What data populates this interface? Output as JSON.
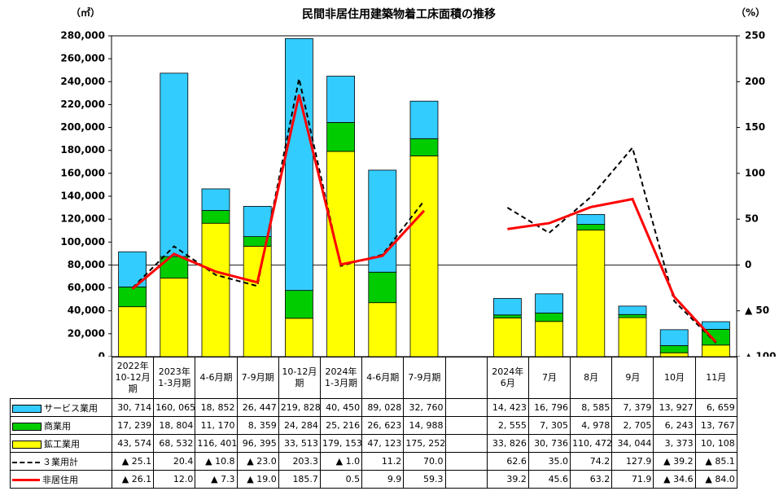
{
  "chart_data": {
    "type": "bar",
    "title": "民間非居住用建築物着工床面積の推移",
    "y_unit": "（㎡）",
    "y2_unit": "（%）",
    "categories": [
      "2022年\n10-12月\n期",
      "2023年\n1-3月期",
      "4-6月期",
      "7-9月期",
      "10-12月\n期",
      "2024年\n1-3月期",
      "4-6月期",
      "7-9月期",
      null,
      "2024年\n6月",
      "7月",
      "8月",
      "9月",
      "10月",
      "11月"
    ],
    "ylim": [
      0,
      280000
    ],
    "yticks": [
      0,
      {
        "value": 20000,
        "label": "20,000"
      },
      {
        "value": 40000,
        "label": "40,000"
      },
      {
        "value": 60000,
        "label": "60,000"
      },
      {
        "value": 80000,
        "label": "80,000"
      },
      {
        "value": 100000,
        "label": "100,000"
      },
      {
        "value": 120000,
        "label": "120,000"
      },
      {
        "value": 140000,
        "label": "140,000"
      },
      {
        "value": 160000,
        "label": "160,000"
      },
      {
        "value": 180000,
        "label": "180,000"
      },
      {
        "value": 200000,
        "label": "200,000"
      },
      {
        "value": 220000,
        "label": "220,000"
      },
      {
        "value": 240000,
        "label": "240,000"
      },
      {
        "value": 260000,
        "label": "260,000"
      },
      {
        "value": 280000,
        "label": "280,000"
      }
    ],
    "y2lim": [
      -100,
      250
    ],
    "y2ticks": [
      {
        "value": -100,
        "label": "▲ 100"
      },
      {
        "value": -50,
        "label": "▲ 50"
      },
      0,
      50,
      100,
      150,
      200,
      250
    ],
    "series": [
      {
        "name": "サービス業用",
        "type": "bar",
        "color": "#33ccff",
        "values": [
          30714,
          160065,
          18852,
          26447,
          219828,
          40450,
          89028,
          32760,
          null,
          14423,
          16796,
          8585,
          7379,
          13927,
          6659
        ],
        "value_labels": [
          "30, 714",
          "160, 065",
          "18, 852",
          "26, 447",
          "219, 828",
          "40, 450",
          "89, 028",
          "32, 760",
          null,
          "14, 423",
          "16, 796",
          "8, 585",
          "7, 379",
          "13, 927",
          "6, 659"
        ]
      },
      {
        "name": "商業用",
        "type": "bar",
        "color": "#00cc00",
        "values": [
          17239,
          18804,
          11170,
          8359,
          24284,
          25216,
          26623,
          14988,
          null,
          2555,
          7305,
          4978,
          2705,
          6243,
          13767
        ],
        "value_labels": [
          "17, 239",
          "18, 804",
          "11, 170",
          "8, 359",
          "24, 284",
          "25, 216",
          "26, 623",
          "14, 988",
          null,
          "2, 555",
          "7, 305",
          "4, 978",
          "2, 705",
          "6, 243",
          "13, 767"
        ]
      },
      {
        "name": "鉱工業用",
        "type": "bar",
        "color": "#ffff00",
        "values": [
          43574,
          68532,
          116401,
          96395,
          33513,
          179153,
          47123,
          175252,
          null,
          33826,
          30736,
          110472,
          34044,
          3373,
          10108
        ],
        "value_labels": [
          "43, 574",
          "68, 532",
          "116, 401",
          "96, 395",
          "33, 513",
          "179, 153",
          "47, 123",
          "175, 252",
          null,
          "33, 826",
          "30, 736",
          "110, 472",
          "34, 044",
          "3, 373",
          "10, 108"
        ]
      },
      {
        "name": "３業用計",
        "type": "line",
        "axis": "y2",
        "color": "#000000",
        "dashed": true,
        "values": [
          -25.1,
          20.4,
          -10.8,
          -23.0,
          203.3,
          -1.0,
          11.2,
          70.0,
          null,
          62.6,
          35.0,
          74.2,
          127.9,
          -39.2,
          -85.1
        ],
        "value_labels": [
          "▲ 25.1",
          "20.4",
          "▲ 10.8",
          "▲ 23.0",
          "203.3",
          "▲ 1.0",
          "11.2",
          "70.0",
          null,
          "62.6",
          "35.0",
          "74.2",
          "127.9",
          "▲ 39.2",
          "▲ 85.1"
        ]
      },
      {
        "name": "非居住用",
        "type": "line",
        "axis": "y2",
        "color": "#ff0000",
        "dashed": false,
        "values": [
          -26.1,
          12.0,
          -7.3,
          -19.0,
          185.7,
          0.5,
          9.9,
          59.3,
          null,
          39.2,
          45.6,
          63.2,
          71.9,
          -34.6,
          -84.0
        ],
        "value_labels": [
          "▲ 26.1",
          "12.0",
          "▲ 7.3",
          "▲ 19.0",
          "185.7",
          "0.5",
          "9.9",
          "59.3",
          null,
          "39.2",
          "45.6",
          "63.2",
          "71.9",
          "▲ 34.6",
          "▲ 84.0"
        ]
      }
    ]
  }
}
